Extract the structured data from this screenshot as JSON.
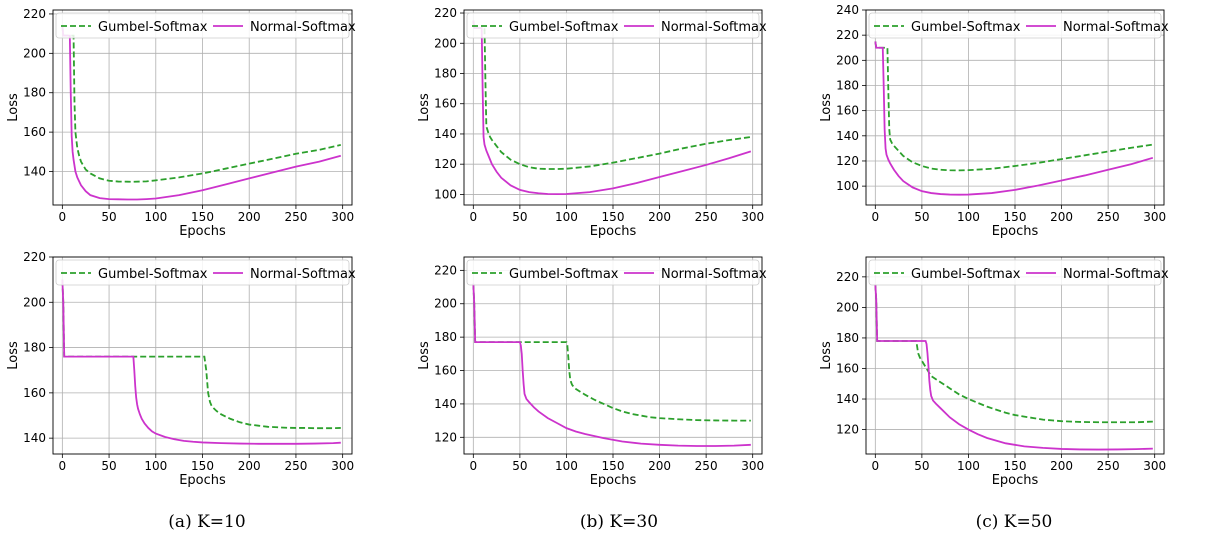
{
  "captions": [
    "(a) K=10",
    "(b) K=30",
    "(c) K=50"
  ],
  "chart_data": [
    {
      "type": "line",
      "xlabel": "Epochs",
      "ylabel": "Loss",
      "xlim": [
        -10,
        310
      ],
      "ylim": [
        123,
        222
      ],
      "xticks": [
        0,
        50,
        100,
        150,
        200,
        250,
        300
      ],
      "yticks": [
        140,
        160,
        180,
        200,
        220
      ],
      "grid": true,
      "legend": "top",
      "series": [
        {
          "name": "Gumbel-Softmax",
          "color": "#2ca02c",
          "dash": "dashed",
          "x": [
            0,
            1,
            2,
            3,
            4,
            5,
            6,
            7,
            8,
            9,
            10,
            11,
            12,
            13,
            14,
            16,
            18,
            20,
            25,
            30,
            40,
            50,
            60,
            75,
            90,
            100,
            125,
            150,
            175,
            200,
            225,
            250,
            275,
            298
          ],
          "y": [
            214,
            209,
            209,
            209,
            209,
            209,
            209,
            209,
            209,
            209,
            209,
            209,
            209,
            175,
            160,
            152,
            148,
            145,
            141,
            139,
            136.5,
            135.3,
            134.9,
            134.8,
            135,
            135.5,
            137,
            139,
            141.5,
            144,
            146.5,
            149,
            151,
            153.5
          ]
        },
        {
          "name": "Normal-Softmax",
          "color": "#cc33cc",
          "dash": "solid",
          "x": [
            0,
            1,
            2,
            3,
            4,
            5,
            6,
            7,
            8,
            9,
            10,
            11,
            12,
            14,
            16,
            18,
            20,
            25,
            30,
            40,
            50,
            60,
            70,
            80,
            90,
            100,
            125,
            150,
            175,
            200,
            225,
            250,
            275,
            298
          ],
          "y": [
            214,
            209,
            209,
            209,
            209,
            209,
            209,
            209,
            209,
            180,
            158,
            150,
            146,
            140,
            137,
            135,
            133,
            130,
            128,
            126.5,
            126,
            125.9,
            125.8,
            125.8,
            126,
            126.3,
            128,
            130.5,
            133.5,
            136.5,
            139.5,
            142.5,
            145,
            148
          ]
        }
      ]
    },
    {
      "type": "line",
      "xlabel": "Epochs",
      "ylabel": "Loss",
      "xlim": [
        -10,
        310
      ],
      "ylim": [
        93,
        222
      ],
      "xticks": [
        0,
        50,
        100,
        150,
        200,
        250,
        300
      ],
      "yticks": [
        100,
        120,
        140,
        160,
        180,
        200,
        220
      ],
      "grid": true,
      "legend": "top",
      "series": [
        {
          "name": "Gumbel-Softmax",
          "color": "#2ca02c",
          "dash": "dashed",
          "x": [
            0,
            1,
            2,
            3,
            4,
            5,
            6,
            7,
            8,
            9,
            10,
            11,
            12,
            13,
            14,
            16,
            18,
            20,
            25,
            30,
            40,
            50,
            60,
            70,
            80,
            90,
            100,
            125,
            150,
            175,
            200,
            225,
            250,
            275,
            298
          ],
          "y": [
            215,
            210,
            210,
            210,
            210,
            210,
            210,
            210,
            210,
            210,
            210,
            210,
            210,
            175,
            145,
            141,
            138,
            136,
            132,
            128,
            123,
            120,
            118,
            117,
            116.8,
            116.8,
            117,
            118.5,
            121,
            124,
            127,
            130.5,
            133.5,
            136,
            138
          ]
        },
        {
          "name": "Normal-Softmax",
          "color": "#cc33cc",
          "dash": "solid",
          "x": [
            0,
            1,
            2,
            3,
            4,
            5,
            6,
            7,
            8,
            9,
            10,
            11,
            12,
            14,
            16,
            18,
            20,
            25,
            30,
            40,
            50,
            60,
            70,
            80,
            90,
            100,
            125,
            150,
            175,
            200,
            225,
            250,
            275,
            298
          ],
          "y": [
            215,
            210,
            210,
            210,
            210,
            210,
            210,
            210,
            210,
            210,
            170,
            138,
            133,
            129,
            126,
            123,
            120,
            115,
            111,
            106,
            103,
            101.5,
            100.8,
            100.3,
            100.2,
            100.3,
            101.5,
            104,
            107.5,
            111.5,
            115.5,
            119.5,
            124,
            128.5
          ]
        }
      ]
    },
    {
      "type": "line",
      "xlabel": "Epochs",
      "ylabel": "Loss",
      "xlim": [
        -10,
        310
      ],
      "ylim": [
        85,
        240
      ],
      "xticks": [
        0,
        50,
        100,
        150,
        200,
        250,
        300
      ],
      "yticks": [
        100,
        120,
        140,
        160,
        180,
        200,
        220,
        240
      ],
      "grid": true,
      "legend": "top",
      "series": [
        {
          "name": "Gumbel-Softmax",
          "color": "#2ca02c",
          "dash": "dashed",
          "x": [
            0,
            1,
            2,
            3,
            4,
            5,
            6,
            7,
            8,
            9,
            10,
            11,
            12,
            13,
            14,
            15,
            16,
            18,
            20,
            25,
            30,
            40,
            50,
            60,
            70,
            80,
            90,
            100,
            125,
            150,
            175,
            200,
            225,
            250,
            275,
            298
          ],
          "y": [
            215,
            210,
            210,
            210,
            210,
            210,
            210,
            210,
            210,
            210,
            210,
            210,
            210,
            210,
            175,
            145,
            137,
            134,
            132,
            128,
            124,
            119,
            116,
            114,
            113,
            112.6,
            112.5,
            112.7,
            113.8,
            116,
            118.5,
            121.5,
            124.5,
            127.5,
            130.5,
            133
          ]
        },
        {
          "name": "Normal-Softmax",
          "color": "#cc33cc",
          "dash": "solid",
          "x": [
            0,
            1,
            2,
            3,
            4,
            5,
            6,
            7,
            8,
            9,
            10,
            11,
            12,
            14,
            16,
            18,
            20,
            25,
            30,
            40,
            50,
            60,
            70,
            80,
            90,
            100,
            125,
            150,
            175,
            200,
            225,
            250,
            275,
            298
          ],
          "y": [
            215,
            210,
            210,
            210,
            210,
            210,
            210,
            210,
            210,
            180,
            145,
            130,
            125,
            121,
            118,
            115.5,
            113,
            108,
            104,
            99,
            96,
            94.5,
            93.7,
            93.3,
            93.2,
            93.3,
            94.5,
            97,
            100.5,
            104.5,
            108.5,
            113,
            117.5,
            122.5
          ]
        }
      ]
    },
    {
      "type": "line",
      "xlabel": "Epochs",
      "ylabel": "Loss",
      "xlim": [
        -10,
        310
      ],
      "ylim": [
        133,
        220
      ],
      "xticks": [
        0,
        50,
        100,
        150,
        200,
        250,
        300
      ],
      "yticks": [
        140,
        160,
        180,
        200,
        220
      ],
      "grid": true,
      "legend": "top",
      "series": [
        {
          "name": "Gumbel-Softmax",
          "color": "#2ca02c",
          "dash": "dashed",
          "x": [
            0,
            1,
            2,
            3,
            150,
            152,
            154,
            156,
            158,
            160,
            165,
            170,
            180,
            190,
            200,
            210,
            220,
            230,
            240,
            250,
            260,
            270,
            280,
            290,
            298
          ],
          "y": [
            210,
            200,
            176,
            176,
            176,
            176,
            170,
            160,
            156,
            154,
            152,
            150.5,
            148.5,
            147,
            146,
            145.5,
            145,
            144.8,
            144.6,
            144.5,
            144.5,
            144.4,
            144.4,
            144.4,
            144.5
          ]
        },
        {
          "name": "Normal-Softmax",
          "color": "#cc33cc",
          "dash": "solid",
          "x": [
            0,
            1,
            2,
            3,
            76,
            77,
            78,
            79,
            80,
            81,
            83,
            85,
            88,
            92,
            96,
            100,
            110,
            120,
            130,
            140,
            150,
            170,
            190,
            210,
            230,
            250,
            270,
            290,
            298
          ],
          "y": [
            210,
            200,
            176,
            176,
            176,
            170,
            163,
            158,
            155,
            153,
            150.5,
            148.5,
            146.5,
            144.5,
            143,
            142,
            140.5,
            139.5,
            138.8,
            138.4,
            138.1,
            137.8,
            137.6,
            137.5,
            137.5,
            137.5,
            137.6,
            137.8,
            138
          ]
        }
      ]
    },
    {
      "type": "line",
      "xlabel": "Epochs",
      "ylabel": "Loss",
      "xlim": [
        -10,
        310
      ],
      "ylim": [
        110,
        228
      ],
      "xticks": [
        0,
        50,
        100,
        150,
        200,
        250,
        300
      ],
      "yticks": [
        120,
        140,
        160,
        180,
        200,
        220
      ],
      "grid": true,
      "legend": "top",
      "series": [
        {
          "name": "Gumbel-Softmax",
          "color": "#2ca02c",
          "dash": "dashed",
          "x": [
            0,
            1,
            2,
            3,
            100,
            101,
            102,
            103,
            104,
            105,
            106,
            108,
            110,
            120,
            130,
            140,
            150,
            160,
            170,
            180,
            190,
            200,
            220,
            240,
            260,
            280,
            298
          ],
          "y": [
            212,
            200,
            177,
            177,
            177,
            175,
            168,
            160,
            155,
            153,
            151.5,
            150,
            149,
            145.5,
            142.5,
            140,
            137.5,
            135.5,
            134,
            133,
            132,
            131.5,
            130.8,
            130.3,
            130.1,
            130,
            130
          ]
        },
        {
          "name": "Normal-Softmax",
          "color": "#cc33cc",
          "dash": "solid",
          "x": [
            0,
            1,
            2,
            3,
            50,
            51,
            52,
            53,
            54,
            55,
            57,
            60,
            65,
            70,
            80,
            90,
            100,
            110,
            120,
            140,
            160,
            180,
            200,
            220,
            240,
            260,
            280,
            298
          ],
          "y": [
            212,
            200,
            177,
            177,
            177,
            175,
            170,
            160,
            152,
            146,
            143,
            141,
            138,
            135.5,
            131.5,
            128.5,
            125.5,
            123.5,
            122,
            119.5,
            117.5,
            116.2,
            115.5,
            115,
            114.8,
            114.8,
            115,
            115.5
          ]
        }
      ]
    },
    {
      "type": "line",
      "xlabel": "Epochs",
      "ylabel": "Loss",
      "xlim": [
        -10,
        310
      ],
      "ylim": [
        104,
        233
      ],
      "xticks": [
        0,
        50,
        100,
        150,
        200,
        250,
        300
      ],
      "yticks": [
        120,
        140,
        160,
        180,
        200,
        220
      ],
      "grid": true,
      "legend": "top",
      "series": [
        {
          "name": "Gumbel-Softmax",
          "color": "#2ca02c",
          "dash": "dashed",
          "x": [
            0,
            1,
            2,
            3,
            44,
            46,
            48,
            50,
            55,
            60,
            70,
            80,
            90,
            100,
            110,
            120,
            130,
            140,
            150,
            160,
            170,
            180,
            190,
            200,
            220,
            240,
            260,
            280,
            298
          ],
          "y": [
            215,
            205,
            178,
            178,
            178,
            170,
            167,
            165,
            160,
            155,
            151,
            147,
            143,
            140,
            137.5,
            135,
            133,
            131,
            129.5,
            128.5,
            127.5,
            126.5,
            126,
            125.5,
            125,
            124.8,
            124.8,
            124.8,
            125.2
          ]
        },
        {
          "name": "Normal-Softmax",
          "color": "#cc33cc",
          "dash": "solid",
          "x": [
            0,
            1,
            2,
            3,
            54,
            55,
            56,
            57,
            58,
            59,
            60,
            62,
            65,
            70,
            80,
            90,
            100,
            110,
            120,
            140,
            160,
            180,
            200,
            220,
            240,
            260,
            280,
            298
          ],
          "y": [
            215,
            205,
            178,
            178,
            178,
            176,
            170,
            162,
            152,
            146,
            142,
            139,
            137,
            134,
            128,
            123.5,
            120,
            117,
            114.5,
            111,
            109,
            108,
            107.3,
            107,
            106.9,
            107,
            107.2,
            107.5
          ]
        }
      ]
    }
  ]
}
